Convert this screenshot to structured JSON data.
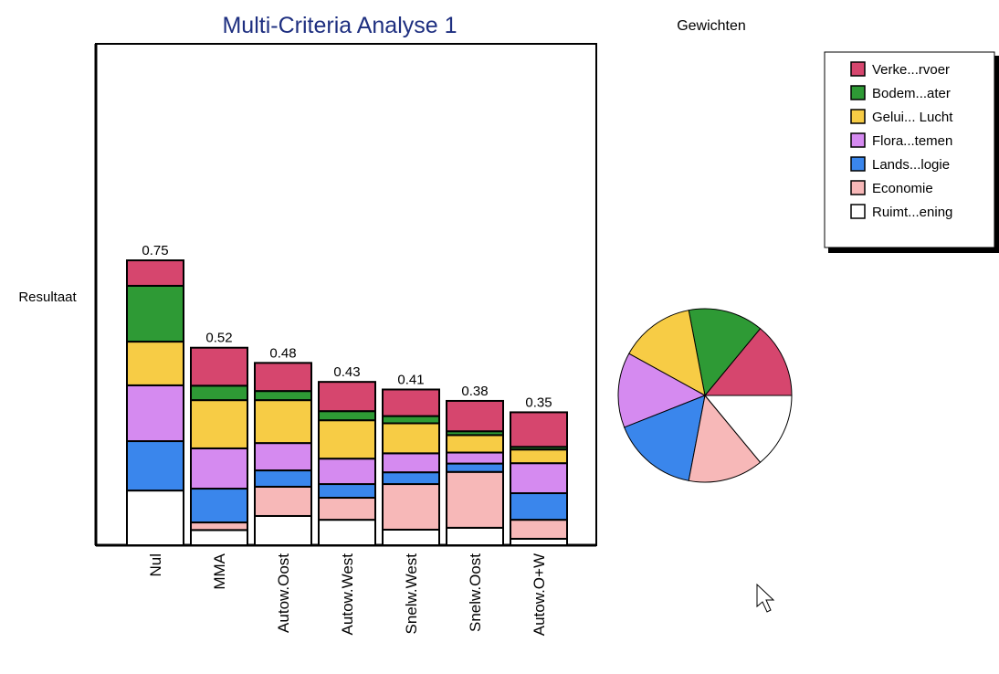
{
  "chart_data": [
    {
      "type": "bar",
      "stacked": true,
      "title": "Multi-Criteria Analyse 1",
      "y_label": "Resultaat",
      "categories": [
        "Nul",
        "MMA",
        "Autow.Oost",
        "Autow.West",
        "Snelw.West",
        "Snelw.Oost",
        "Autow.O+W"
      ],
      "totals": [
        0.75,
        0.52,
        0.48,
        0.43,
        0.41,
        0.38,
        0.35
      ],
      "ylim": [
        0,
        1.32
      ],
      "legend": "top-right",
      "series": [
        {
          "name": "Verke...rvoer",
          "color": "#d6466e",
          "values": [
            0.067,
            0.1,
            0.074,
            0.077,
            0.07,
            0.08,
            0.091
          ]
        },
        {
          "name": "Bodem...ater",
          "color": "#2e9a35",
          "values": [
            0.147,
            0.038,
            0.024,
            0.024,
            0.019,
            0.01,
            0.007
          ]
        },
        {
          "name": "Gelui... Lucht",
          "color": "#f7cc45",
          "values": [
            0.115,
            0.127,
            0.113,
            0.101,
            0.079,
            0.046,
            0.036
          ]
        },
        {
          "name": "Flora...temen",
          "color": "#d58af0",
          "values": [
            0.147,
            0.106,
            0.072,
            0.067,
            0.05,
            0.029,
            0.079
          ]
        },
        {
          "name": "Lands...logie",
          "color": "#3a86ec",
          "values": [
            0.13,
            0.089,
            0.043,
            0.036,
            0.031,
            0.022,
            0.07
          ]
        },
        {
          "name": "Economie",
          "color": "#f7b8b8",
          "values": [
            0,
            0.02,
            0.077,
            0.058,
            0.12,
            0.147,
            0.05
          ]
        },
        {
          "name": "Ruimt...ening",
          "color": "#ffffff",
          "values": [
            0.144,
            0.04,
            0.077,
            0.067,
            0.041,
            0.046,
            0.017
          ]
        }
      ]
    },
    {
      "type": "pie",
      "title": "Gewichten",
      "values": [
        14,
        14,
        14,
        14,
        16,
        14,
        14
      ],
      "colors": [
        "#d6466e",
        "#2e9a35",
        "#f7cc45",
        "#d58af0",
        "#3a86ec",
        "#f7b8b8",
        "#ffffff"
      ]
    }
  ]
}
